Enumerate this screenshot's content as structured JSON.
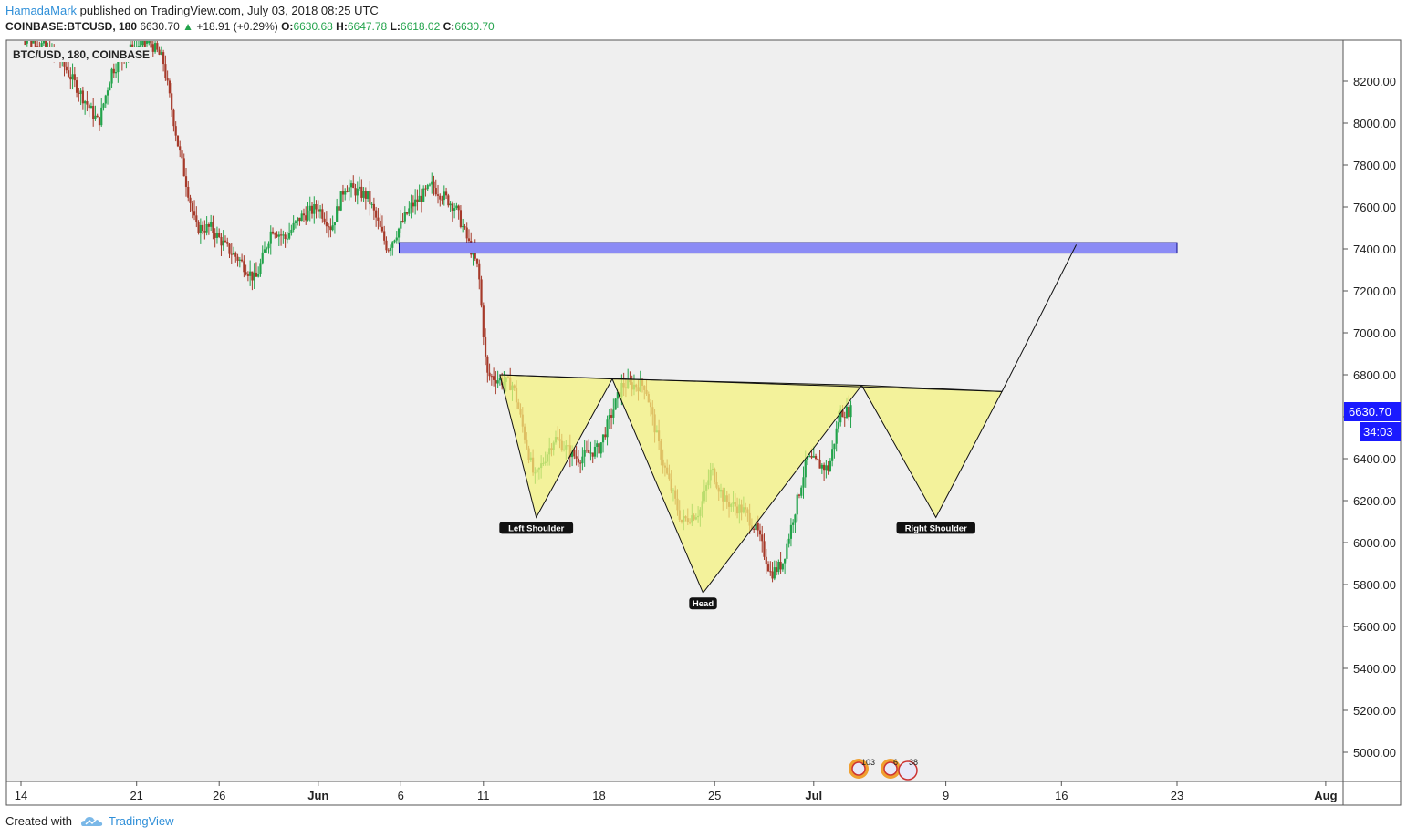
{
  "header": {
    "author": "HamadaMark",
    "published_text": "published on TradingView.com, July 03, 2018 08:25 UTC",
    "symbol": "COINBASE:BTCUSD, 180",
    "last": "6630.70",
    "change": "+18.91 (+0.29%)",
    "o_label": "O:",
    "o_value": "6630.68",
    "h_label": "H:",
    "h_value": "6647.78",
    "l_label": "L:",
    "l_value": "6618.02",
    "c_label": "C:",
    "c_value": "6630.70"
  },
  "chart_label": "BTC/USD, 180, COINBASE",
  "price_tag": {
    "price": "6630.70",
    "countdown": "34:03"
  },
  "footer": {
    "created_with": "Created with",
    "brand": "TradingView"
  },
  "event_badges": [
    "103",
    "6",
    "38"
  ],
  "colors": {
    "up": "#22a34b",
    "down": "#a63a2a",
    "zone": "#8b8bf5",
    "zone_border": "#0a0a8a",
    "pattern_fill": "#f4f27a",
    "price_tag": "#1a1aff",
    "chart_bg": "#efefef"
  },
  "chart_data": {
    "type": "candlestick",
    "title": "BTC/USD, 180, COINBASE",
    "ylim": [
      4850,
      8400
    ],
    "y_ticks": [
      5000,
      5200,
      5400,
      5600,
      5800,
      6000,
      6200,
      6400,
      6600,
      6800,
      7000,
      7200,
      7400,
      7600,
      7800,
      8000,
      8200
    ],
    "x_ticks": [
      {
        "label": "14",
        "day": 0
      },
      {
        "label": "21",
        "day": 7
      },
      {
        "label": "26",
        "day": 12
      },
      {
        "label": "Jun",
        "day": 18
      },
      {
        "label": "6",
        "day": 23
      },
      {
        "label": "11",
        "day": 28
      },
      {
        "label": "18",
        "day": 35
      },
      {
        "label": "25",
        "day": 42
      },
      {
        "label": "Jul",
        "day": 48
      },
      {
        "label": "9",
        "day": 56
      },
      {
        "label": "16",
        "day": 63
      },
      {
        "label": "23",
        "day": 70
      },
      {
        "label": "Aug",
        "day": 79
      }
    ],
    "price_path": [
      [
        0.0,
        8450
      ],
      [
        2.4,
        8300
      ],
      [
        4.7,
        8000
      ],
      [
        5.5,
        8250
      ],
      [
        6.6,
        8350
      ],
      [
        7.7,
        8400
      ],
      [
        8.6,
        8300
      ],
      [
        9.5,
        7900
      ],
      [
        10.6,
        7500
      ],
      [
        11.5,
        7500
      ],
      [
        12.5,
        7400
      ],
      [
        13.2,
        7350
      ],
      [
        14.2,
        7250
      ],
      [
        15.2,
        7500
      ],
      [
        16.0,
        7450
      ],
      [
        16.9,
        7550
      ],
      [
        18.0,
        7600
      ],
      [
        18.8,
        7500
      ],
      [
        19.6,
        7700
      ],
      [
        21.0,
        7650
      ],
      [
        22.2,
        7400
      ],
      [
        23.6,
        7600
      ],
      [
        24.9,
        7700
      ],
      [
        26.3,
        7600
      ],
      [
        27.7,
        7300
      ],
      [
        28.2,
        6800
      ],
      [
        29.8,
        6750
      ],
      [
        31.1,
        6300
      ],
      [
        32.3,
        6500
      ],
      [
        33.7,
        6400
      ],
      [
        35.0,
        6450
      ],
      [
        36.4,
        6750
      ],
      [
        37.8,
        6750
      ],
      [
        38.8,
        6400
      ],
      [
        40.0,
        6100
      ],
      [
        41.1,
        6150
      ],
      [
        41.8,
        6350
      ],
      [
        42.6,
        6200
      ],
      [
        43.8,
        6150
      ],
      [
        44.6,
        6050
      ],
      [
        45.4,
        5850
      ],
      [
        46.1,
        5900
      ],
      [
        47.6,
        6400
      ],
      [
        48.9,
        6350
      ],
      [
        49.6,
        6620
      ],
      [
        50.3,
        6630.7
      ]
    ],
    "zone": {
      "day_start": 22.9,
      "day_end": 70.0,
      "low": 7380,
      "high": 7430
    },
    "pattern_triangles": [
      {
        "label": "Left Shoulder",
        "points": [
          [
            29.0,
            6800
          ],
          [
            35.8,
            6780
          ],
          [
            31.2,
            6120
          ]
        ]
      },
      {
        "label": "Head",
        "points": [
          [
            35.8,
            6780
          ],
          [
            50.9,
            6750
          ],
          [
            41.3,
            5760
          ]
        ]
      },
      {
        "label": "Right Shoulder",
        "points": [
          [
            50.9,
            6750
          ],
          [
            59.4,
            6720
          ],
          [
            55.4,
            6120
          ]
        ]
      }
    ],
    "neckline": [
      [
        29.0,
        6800
      ],
      [
        59.4,
        6720
      ]
    ],
    "projection": [
      [
        59.4,
        6720
      ],
      [
        63.9,
        7420
      ]
    ],
    "last_price": 6630.7
  }
}
